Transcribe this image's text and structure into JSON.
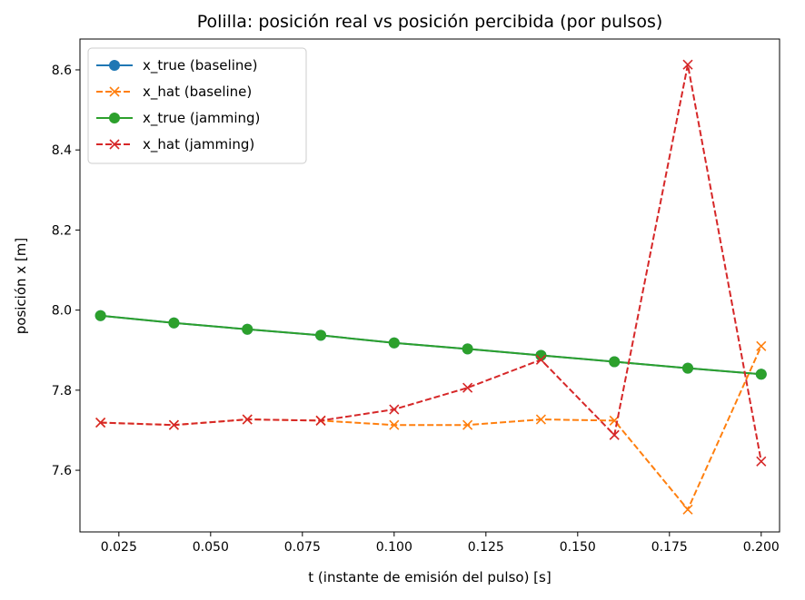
{
  "chart_data": {
    "type": "line",
    "title": "Polilla: posición real vs posición percibida (por pulsos)",
    "xlabel": "t (instante de emisión del pulso) [s]",
    "ylabel": "posición x [m]",
    "xlim": [
      0.0144,
      0.205
    ],
    "ylim": [
      7.446,
      8.677
    ],
    "xticks": [
      0.025,
      0.05,
      0.075,
      0.1,
      0.125,
      0.15,
      0.175,
      0.2
    ],
    "xtick_labels": [
      "0.025",
      "0.050",
      "0.075",
      "0.100",
      "0.125",
      "0.150",
      "0.175",
      "0.200"
    ],
    "yticks": [
      7.6,
      7.8,
      8.0,
      8.2,
      8.4,
      8.6
    ],
    "ytick_labels": [
      "7.6",
      "7.8",
      "8.0",
      "8.2",
      "8.4",
      "8.6"
    ],
    "legend_placement": "top-left",
    "x": [
      0.02,
      0.04,
      0.06,
      0.08,
      0.1,
      0.12,
      0.14,
      0.16,
      0.18,
      0.2
    ],
    "series": [
      {
        "name": "x_true (baseline)",
        "color": "#1f77b4",
        "dash": false,
        "marker": "o",
        "values": [
          7.986,
          7.968,
          7.952,
          7.937,
          7.918,
          7.903,
          7.887,
          7.871,
          7.855,
          7.84
        ]
      },
      {
        "name": "x_hat (baseline)",
        "color": "#ff7f0e",
        "dash": true,
        "marker": "x",
        "values": [
          7.719,
          7.713,
          7.727,
          7.724,
          7.713,
          7.713,
          7.727,
          7.724,
          7.502,
          7.91
        ]
      },
      {
        "name": "x_true (jamming)",
        "color": "#2ca02c",
        "dash": false,
        "marker": "o",
        "values": [
          7.986,
          7.968,
          7.952,
          7.937,
          7.918,
          7.903,
          7.887,
          7.871,
          7.855,
          7.84
        ]
      },
      {
        "name": "x_hat (jamming)",
        "color": "#d62728",
        "dash": true,
        "marker": "x",
        "values": [
          7.719,
          7.713,
          7.727,
          7.724,
          7.752,
          7.806,
          7.876,
          7.688,
          8.613,
          7.622
        ]
      }
    ]
  }
}
